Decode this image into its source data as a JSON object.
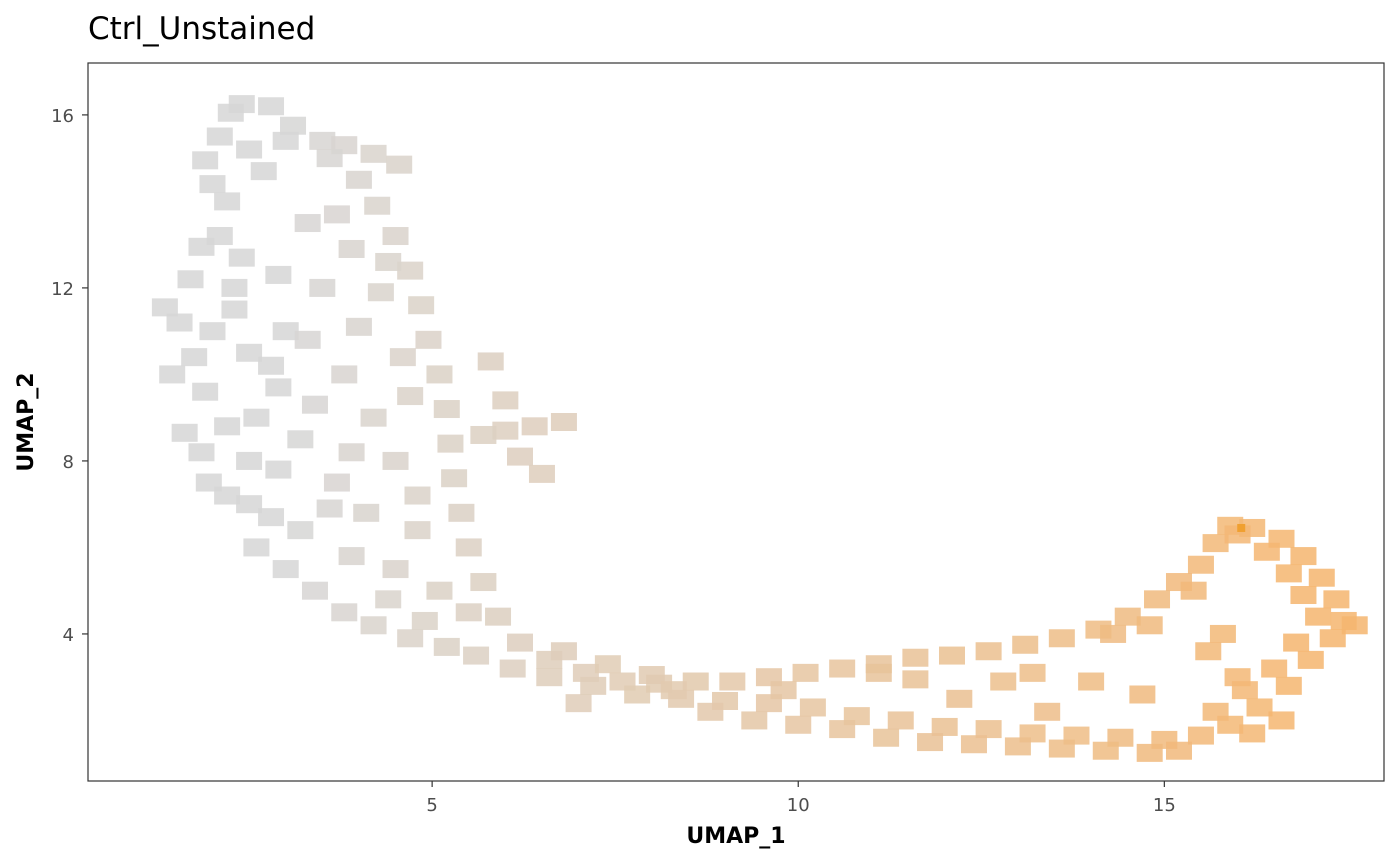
{
  "chart_data": {
    "type": "scatter",
    "title": "Ctrl_Unstained",
    "xlabel": "UMAP_1",
    "ylabel": "UMAP_2",
    "xlim": [
      0.3,
      18.0
    ],
    "ylim": [
      0.6,
      17.2
    ],
    "xticks": [
      5,
      10,
      15
    ],
    "yticks": [
      4,
      8,
      12,
      16
    ],
    "grid": false,
    "legend": "none",
    "marker": "square",
    "color_low": "#d6d6d6",
    "color_high": "#f5b56e",
    "color_peak": "#f0a030",
    "series": [
      {
        "values": [
          [
            1.35,
            11.55
          ],
          [
            1.55,
            11.2
          ],
          [
            1.45,
            10.0
          ],
          [
            1.62,
            8.65
          ],
          [
            1.75,
            10.4
          ],
          [
            1.7,
            12.2
          ],
          [
            1.85,
            12.95
          ],
          [
            1.9,
            14.95
          ],
          [
            2.0,
            14.4
          ],
          [
            2.1,
            15.5
          ],
          [
            2.25,
            16.05
          ],
          [
            2.4,
            16.25
          ],
          [
            2.8,
            16.2
          ],
          [
            3.1,
            15.75
          ],
          [
            3.5,
            15.4
          ],
          [
            3.8,
            15.3
          ],
          [
            4.2,
            15.1
          ],
          [
            4.55,
            14.85
          ],
          [
            2.1,
            13.2
          ],
          [
            2.3,
            12.0
          ],
          [
            2.0,
            11.0
          ],
          [
            1.9,
            9.6
          ],
          [
            1.85,
            8.2
          ],
          [
            1.95,
            7.5
          ],
          [
            2.2,
            7.2
          ],
          [
            2.5,
            7.0
          ],
          [
            2.8,
            6.7
          ],
          [
            2.6,
            6.0
          ],
          [
            3.0,
            5.5
          ],
          [
            3.4,
            5.0
          ],
          [
            3.8,
            4.5
          ],
          [
            4.2,
            4.2
          ],
          [
            4.7,
            3.9
          ],
          [
            5.2,
            3.7
          ],
          [
            5.6,
            3.5
          ],
          [
            6.1,
            3.2
          ],
          [
            6.6,
            3.0
          ],
          [
            7.2,
            2.8
          ],
          [
            7.8,
            2.6
          ],
          [
            8.4,
            2.5
          ],
          [
            9.0,
            2.45
          ],
          [
            9.6,
            2.4
          ],
          [
            10.2,
            2.3
          ],
          [
            10.8,
            2.1
          ],
          [
            11.4,
            2.0
          ],
          [
            12.0,
            1.85
          ],
          [
            12.6,
            1.8
          ],
          [
            13.2,
            1.7
          ],
          [
            13.8,
            1.65
          ],
          [
            14.4,
            1.6
          ],
          [
            15.0,
            1.55
          ],
          [
            15.5,
            1.65
          ],
          [
            15.9,
            1.9
          ],
          [
            16.3,
            2.3
          ],
          [
            16.7,
            2.8
          ],
          [
            17.0,
            3.4
          ],
          [
            17.3,
            3.9
          ],
          [
            17.45,
            4.3
          ],
          [
            17.35,
            4.8
          ],
          [
            17.15,
            5.3
          ],
          [
            16.9,
            5.8
          ],
          [
            16.6,
            6.2
          ],
          [
            16.2,
            6.45
          ],
          [
            15.9,
            6.5
          ],
          [
            15.7,
            6.1
          ],
          [
            15.5,
            5.6
          ],
          [
            15.2,
            5.2
          ],
          [
            14.9,
            4.8
          ],
          [
            14.5,
            4.4
          ],
          [
            14.1,
            4.1
          ],
          [
            13.6,
            3.9
          ],
          [
            13.1,
            3.75
          ],
          [
            12.6,
            3.6
          ],
          [
            12.1,
            3.5
          ],
          [
            11.6,
            3.45
          ],
          [
            11.1,
            3.3
          ],
          [
            10.6,
            3.2
          ],
          [
            10.1,
            3.1
          ],
          [
            9.6,
            3.0
          ],
          [
            9.1,
            2.9
          ],
          [
            8.6,
            2.9
          ],
          [
            8.1,
            2.85
          ],
          [
            7.6,
            2.9
          ],
          [
            7.1,
            3.1
          ],
          [
            6.6,
            3.4
          ],
          [
            6.2,
            3.8
          ],
          [
            5.9,
            4.4
          ],
          [
            5.7,
            5.2
          ],
          [
            5.5,
            6.0
          ],
          [
            5.4,
            6.8
          ],
          [
            5.3,
            7.6
          ],
          [
            5.25,
            8.4
          ],
          [
            5.2,
            9.2
          ],
          [
            5.1,
            10.0
          ],
          [
            4.95,
            10.8
          ],
          [
            4.85,
            11.6
          ],
          [
            4.7,
            12.4
          ],
          [
            4.5,
            13.2
          ],
          [
            4.25,
            13.9
          ],
          [
            4.0,
            14.5
          ],
          [
            3.6,
            15.0
          ],
          [
            3.0,
            15.4
          ],
          [
            2.5,
            15.2
          ],
          [
            2.2,
            14.0
          ],
          [
            6.8,
            8.9
          ],
          [
            6.4,
            8.8
          ],
          [
            6.0,
            8.7
          ],
          [
            5.7,
            8.6
          ],
          [
            6.2,
            8.1
          ],
          [
            6.5,
            7.7
          ],
          [
            5.8,
            10.3
          ],
          [
            6.0,
            9.4
          ],
          [
            11.1,
            3.1
          ],
          [
            11.6,
            2.95
          ],
          [
            14.3,
            4.0
          ],
          [
            14.8,
            4.2
          ],
          [
            15.8,
            4.0
          ],
          [
            15.6,
            3.6
          ],
          [
            16.0,
            3.0
          ],
          [
            13.2,
            3.1
          ],
          [
            12.8,
            2.9
          ],
          [
            14.0,
            2.9
          ],
          [
            14.7,
            2.6
          ],
          [
            3.5,
            12.0
          ],
          [
            3.0,
            11.0
          ],
          [
            2.5,
            10.5
          ],
          [
            3.8,
            10.0
          ],
          [
            2.6,
            9.0
          ],
          [
            3.2,
            8.5
          ],
          [
            4.2,
            9.0
          ],
          [
            4.5,
            8.0
          ],
          [
            3.7,
            7.5
          ],
          [
            4.1,
            6.8
          ],
          [
            4.8,
            6.4
          ],
          [
            4.5,
            5.5
          ],
          [
            5.1,
            5.0
          ],
          [
            5.5,
            4.5
          ],
          [
            4.9,
            4.3
          ],
          [
            3.3,
            13.5
          ],
          [
            2.7,
            14.7
          ],
          [
            3.9,
            12.9
          ],
          [
            4.3,
            11.9
          ],
          [
            2.4,
            12.7
          ],
          [
            2.9,
            12.3
          ],
          [
            4.6,
            10.4
          ],
          [
            4.0,
            11.1
          ],
          [
            2.9,
            9.7
          ],
          [
            3.4,
            9.3
          ],
          [
            2.2,
            8.8
          ],
          [
            2.5,
            8.0
          ],
          [
            3.9,
            8.2
          ],
          [
            4.8,
            7.2
          ],
          [
            3.2,
            6.4
          ],
          [
            2.9,
            7.8
          ],
          [
            3.6,
            6.9
          ],
          [
            4.4,
            4.8
          ],
          [
            3.9,
            5.8
          ],
          [
            6.8,
            3.6
          ],
          [
            7.4,
            3.3
          ],
          [
            8.0,
            3.05
          ],
          [
            8.8,
            2.2
          ],
          [
            9.4,
            2.0
          ],
          [
            10.0,
            1.9
          ],
          [
            10.6,
            1.8
          ],
          [
            11.2,
            1.6
          ],
          [
            11.8,
            1.5
          ],
          [
            12.4,
            1.45
          ],
          [
            13.0,
            1.4
          ],
          [
            13.6,
            1.35
          ],
          [
            14.2,
            1.3
          ],
          [
            14.8,
            1.25
          ],
          [
            15.2,
            1.3
          ],
          [
            15.7,
            2.2
          ],
          [
            16.1,
            2.7
          ],
          [
            16.5,
            3.2
          ],
          [
            16.8,
            3.8
          ],
          [
            17.1,
            4.4
          ],
          [
            16.9,
            4.9
          ],
          [
            16.7,
            5.4
          ],
          [
            16.4,
            5.9
          ],
          [
            16.0,
            6.3
          ],
          [
            15.4,
            5.0
          ],
          [
            13.4,
            2.2
          ],
          [
            12.2,
            2.5
          ],
          [
            9.8,
            2.7
          ],
          [
            8.3,
            2.7
          ],
          [
            7.0,
            2.4
          ],
          [
            16.6,
            2.0
          ],
          [
            16.2,
            1.7
          ],
          [
            17.6,
            4.2
          ],
          [
            2.8,
            10.2
          ],
          [
            3.3,
            10.8
          ],
          [
            4.7,
            9.5
          ],
          [
            2.3,
            11.5
          ],
          [
            3.7,
            13.7
          ],
          [
            4.4,
            12.6
          ]
        ]
      }
    ]
  }
}
